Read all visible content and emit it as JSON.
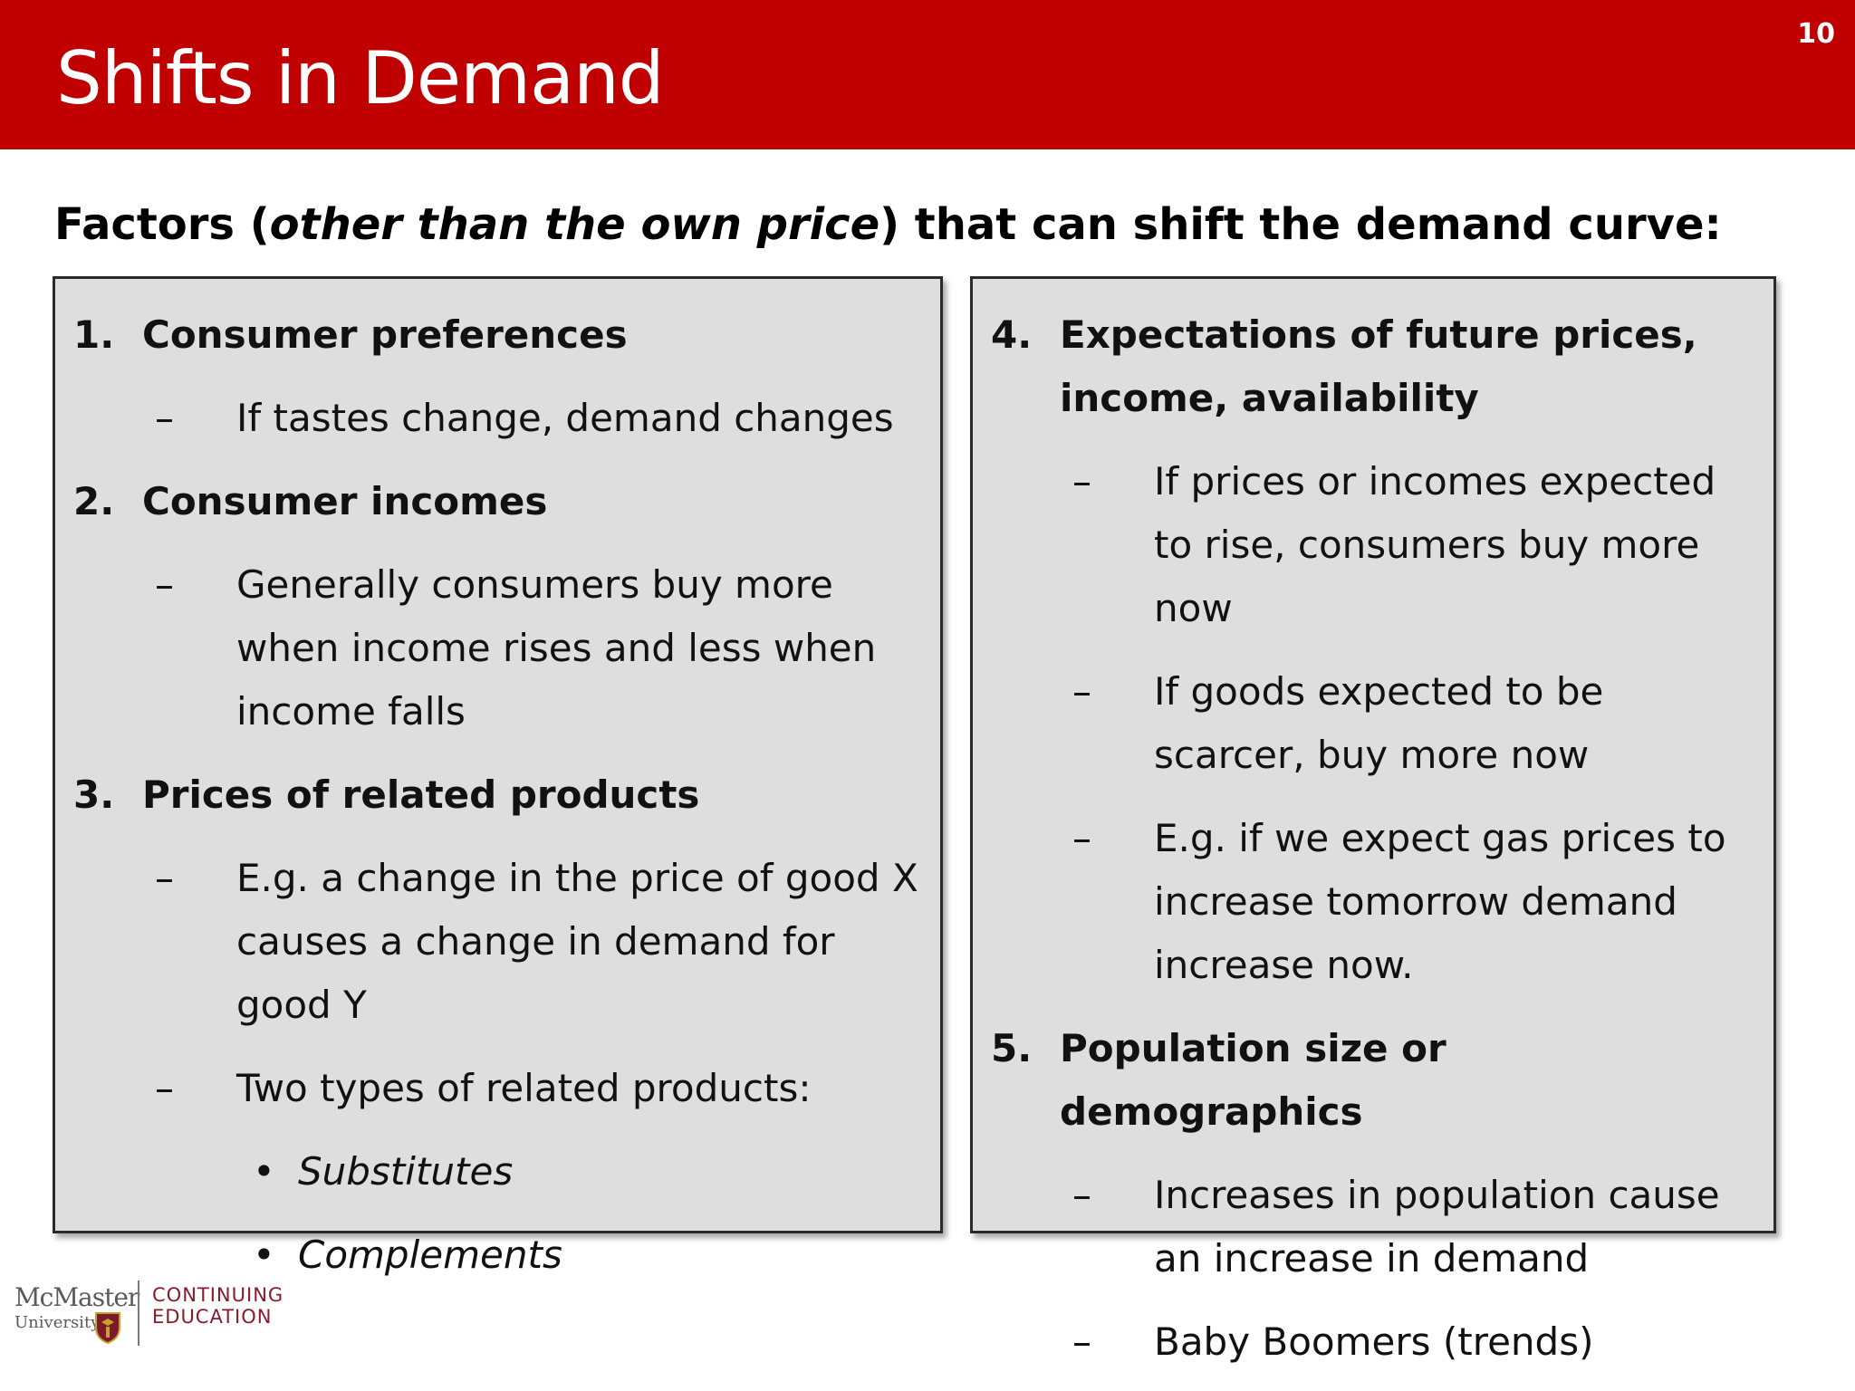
{
  "slide": {
    "title": "Shifts in Demand",
    "number": "10",
    "subtitle_pre": "Factors (",
    "subtitle_em": "other than the own price",
    "subtitle_post": ") that can shift the demand curve:"
  },
  "left_box": {
    "f1": {
      "num": "1.",
      "title": "Consumer preferences",
      "s1": "If tastes change, demand changes"
    },
    "f2": {
      "num": "2.",
      "title": "Consumer incomes",
      "s1": "Generally consumers buy more when income rises and less when income falls"
    },
    "f3": {
      "num": "3.",
      "title": "Prices of related products",
      "s1": "E.g. a change in the price of good X causes a change in demand for good Y",
      "s2": "Two types of related products:",
      "b1": "Substitutes",
      "b2": "Complements"
    }
  },
  "right_box": {
    "f4": {
      "num": "4.",
      "title": "Expectations of future prices, income, availability",
      "s1": "If prices or incomes expected to rise, consumers buy more now",
      "s2": "If goods expected to be scarcer, buy more now",
      "s3": "E.g. if we expect gas prices to increase tomorrow demand increase now."
    },
    "f5": {
      "num": "5.",
      "title": "Population size or demographics",
      "s1": "Increases in population cause an increase in demand",
      "s2": "Baby Boomers (trends)"
    }
  },
  "markers": {
    "dash": "–",
    "bullet": "•"
  },
  "logo": {
    "name": "McMaster",
    "sub": "University",
    "ce_line1": "CONTINUING",
    "ce_line2": "EDUCATION"
  },
  "colors": {
    "header": "#c00000",
    "box_fill": "#dedede",
    "brand_text": "#8b1a2b"
  }
}
